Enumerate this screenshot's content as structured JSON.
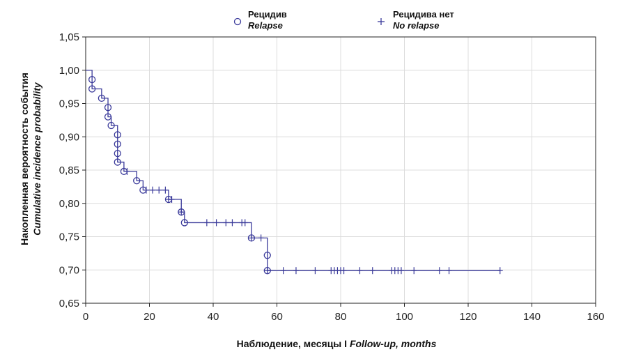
{
  "chart_data": {
    "type": "line",
    "subtype": "step",
    "xlabel_main": "Наблюдение, месяцы I ",
    "xlabel_italic": "Follow-up, months",
    "ylabel_line1": "Накопленная вероятность события",
    "ylabel_line2": "Cumulative incidence probability",
    "xlim": [
      0,
      160
    ],
    "ylim": [
      0.65,
      1.05
    ],
    "xticks": [
      0,
      20,
      40,
      60,
      80,
      100,
      120,
      140,
      160
    ],
    "xtick_labels": [
      "0",
      "20",
      "40",
      "60",
      "80",
      "100",
      "120",
      "140",
      "160"
    ],
    "yticks": [
      0.65,
      0.7,
      0.75,
      0.8,
      0.85,
      0.9,
      0.95,
      1.0,
      1.05
    ],
    "ytick_labels": [
      "0,65",
      "0,70",
      "0,75",
      "0,80",
      "0,85",
      "0,90",
      "0,95",
      "1,00",
      "1,05"
    ],
    "grid": true,
    "legend_position": "top",
    "color": "#3a3a9a",
    "legend": [
      {
        "label": "Рецидив",
        "label_italic": "Relapse",
        "marker": "circle"
      },
      {
        "label": "Рецидива нет",
        "label_italic": "No relapse",
        "marker": "plus"
      }
    ],
    "step_points": [
      [
        0,
        1.0
      ],
      [
        2,
        0.986
      ],
      [
        2,
        0.972
      ],
      [
        5,
        0.958
      ],
      [
        7,
        0.944
      ],
      [
        7,
        0.93
      ],
      [
        8,
        0.917
      ],
      [
        10,
        0.903
      ],
      [
        10,
        0.889
      ],
      [
        10,
        0.875
      ],
      [
        10,
        0.862
      ],
      [
        12,
        0.848
      ],
      [
        16,
        0.834
      ],
      [
        18,
        0.82
      ],
      [
        26,
        0.806
      ],
      [
        30,
        0.787
      ],
      [
        31,
        0.771
      ],
      [
        52,
        0.748
      ],
      [
        57,
        0.722
      ],
      [
        57,
        0.699
      ],
      [
        130,
        0.699
      ]
    ],
    "series": [
      {
        "name": "Рецидив",
        "marker": "circle",
        "points": [
          [
            2,
            0.986
          ],
          [
            2,
            0.972
          ],
          [
            5,
            0.958
          ],
          [
            7,
            0.944
          ],
          [
            7,
            0.93
          ],
          [
            8,
            0.917
          ],
          [
            10,
            0.903
          ],
          [
            10,
            0.889
          ],
          [
            10,
            0.875
          ],
          [
            10,
            0.862
          ],
          [
            12,
            0.848
          ],
          [
            16,
            0.834
          ],
          [
            18,
            0.82
          ],
          [
            26,
            0.806
          ],
          [
            30,
            0.787
          ],
          [
            31,
            0.771
          ],
          [
            52,
            0.748
          ],
          [
            57,
            0.722
          ],
          [
            57,
            0.699
          ]
        ]
      },
      {
        "name": "Рецидива нет",
        "marker": "plus",
        "points": [
          [
            13,
            0.848
          ],
          [
            19,
            0.82
          ],
          [
            21,
            0.82
          ],
          [
            23,
            0.82
          ],
          [
            25,
            0.82
          ],
          [
            26,
            0.806
          ],
          [
            27,
            0.806
          ],
          [
            30,
            0.787
          ],
          [
            38,
            0.771
          ],
          [
            41,
            0.771
          ],
          [
            44,
            0.771
          ],
          [
            46,
            0.771
          ],
          [
            49,
            0.771
          ],
          [
            50,
            0.771
          ],
          [
            52,
            0.748
          ],
          [
            55,
            0.748
          ],
          [
            57,
            0.699
          ],
          [
            62,
            0.699
          ],
          [
            66,
            0.699
          ],
          [
            72,
            0.699
          ],
          [
            77,
            0.699
          ],
          [
            78,
            0.699
          ],
          [
            79,
            0.699
          ],
          [
            80,
            0.699
          ],
          [
            81,
            0.699
          ],
          [
            86,
            0.699
          ],
          [
            90,
            0.699
          ],
          [
            96,
            0.699
          ],
          [
            97,
            0.699
          ],
          [
            98,
            0.699
          ],
          [
            99,
            0.699
          ],
          [
            103,
            0.699
          ],
          [
            111,
            0.699
          ],
          [
            114,
            0.699
          ],
          [
            130,
            0.699
          ]
        ]
      }
    ]
  }
}
